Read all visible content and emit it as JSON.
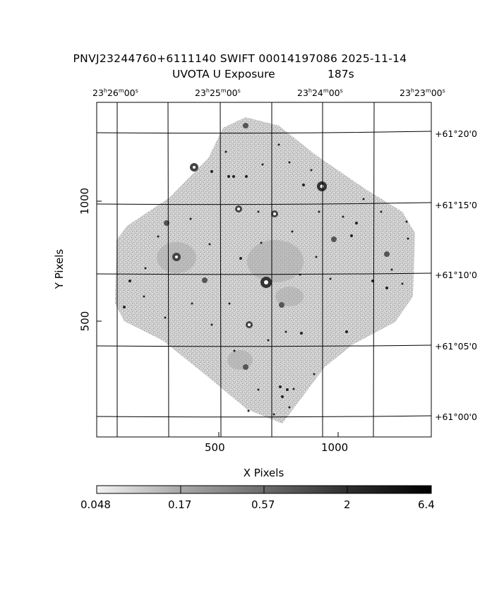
{
  "title": {
    "line1": "PNVJ23244760+6111140 SWIFT 00014197086 2025-11-14",
    "line2_left": "UVOTA U Exposure",
    "line2_right": "187s"
  },
  "ra_ticks": [
    {
      "h": "23",
      "m": "26",
      "s": "00"
    },
    {
      "h": "23",
      "m": "25",
      "s": "00"
    },
    {
      "h": "23",
      "m": "24",
      "s": "00"
    },
    {
      "h": "23",
      "m": "23",
      "s": "00"
    }
  ],
  "dec_ticks": [
    "+61°20'0",
    "+61°15'0",
    "+61°10'0",
    "+61°05'0",
    "+61°00'0"
  ],
  "x_axis": {
    "label": "X Pixels",
    "ticks": [
      "500",
      "1000"
    ]
  },
  "y_axis": {
    "label": "Y Pixels",
    "ticks": [
      "1000",
      "500"
    ]
  },
  "colorbar": {
    "ticks": [
      "0.048",
      "0.17",
      "0.57",
      "2",
      "6.4"
    ]
  },
  "colors": {
    "background": "#ffffff",
    "image_fill": "#c4c4c4",
    "grid": "#000000"
  }
}
